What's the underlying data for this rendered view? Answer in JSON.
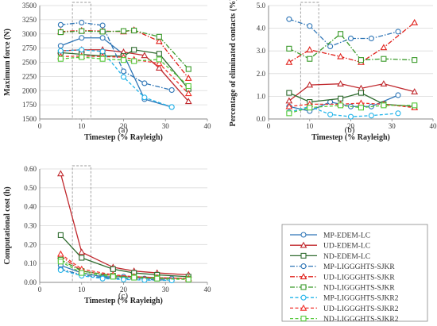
{
  "chart_data": [
    {
      "type": "line",
      "panel_label": "(a)",
      "xlabel": "Timestep (% Rayleigh)",
      "ylabel": "Maximum force (N)",
      "xlim": [
        0,
        40
      ],
      "ylim": [
        1500,
        3500
      ],
      "xticks": [
        0,
        10,
        20,
        30,
        40
      ],
      "yticks": [
        1500,
        1750,
        2000,
        2250,
        2500,
        2750,
        3000,
        3250,
        3500
      ],
      "ytick_decimals": 0,
      "highlight_x": [
        7.8,
        12.2
      ],
      "series": [
        {
          "name": "MP-EDEM-LC",
          "x": [
            5,
            10,
            15,
            20,
            25,
            31.5
          ],
          "y": [
            2790,
            2930,
            2930,
            2640,
            1850,
            1710
          ]
        },
        {
          "name": "UD-EDEM-LC",
          "x": [
            5,
            10,
            15,
            20,
            25,
            28.5,
            35.5
          ],
          "y": [
            2700,
            2720,
            2720,
            2680,
            2620,
            2400,
            1810
          ]
        },
        {
          "name": "ND-EDEM-LC",
          "x": [
            5,
            10,
            15,
            20,
            22.5,
            28.5,
            35.5
          ],
          "y": [
            2670,
            2640,
            2610,
            2610,
            2720,
            2650,
            2030
          ]
        },
        {
          "name": "MP-LIGGGHTS-SJKR",
          "x": [
            5,
            10,
            15,
            20,
            25,
            31.5
          ],
          "y": [
            3160,
            3200,
            3150,
            2340,
            2130,
            2010
          ]
        },
        {
          "name": "UD-LIGGGHTS-SJKR",
          "x": [
            5,
            10,
            15,
            20,
            22.5,
            28.5,
            35.5
          ],
          "y": [
            3040,
            3060,
            3050,
            3040,
            3070,
            2870,
            2220
          ]
        },
        {
          "name": "ND-LIGGGHTS-SJKR",
          "x": [
            5,
            10,
            15,
            20,
            22.5,
            28.5,
            35.5
          ],
          "y": [
            3030,
            3050,
            3040,
            3050,
            3060,
            2950,
            2380
          ]
        },
        {
          "name": "MP-LIGGGHTS-SJKR2",
          "x": [
            5,
            10,
            15,
            20,
            25,
            31.5
          ],
          "y": [
            2700,
            2720,
            2690,
            2240,
            1880,
            1710
          ]
        },
        {
          "name": "UD-LIGGGHTS-SJKR2",
          "x": [
            5,
            10,
            15,
            20,
            22.5,
            28.5,
            35.5
          ],
          "y": [
            2600,
            2610,
            2600,
            2590,
            2550,
            2480,
            1950
          ]
        },
        {
          "name": "ND-LIGGGHTS-SJKR2",
          "x": [
            5,
            10,
            15,
            20,
            22.5,
            28.5,
            35.5
          ],
          "y": [
            2560,
            2590,
            2560,
            2540,
            2520,
            2550,
            2080
          ]
        }
      ]
    },
    {
      "type": "line",
      "panel_label": "(b)",
      "xlabel": "Timestep (% Rayleigh)",
      "ylabel": "Percentage of eliminated contacts (%)",
      "xlim": [
        0,
        40
      ],
      "ylim": [
        0,
        5
      ],
      "xticks": [
        0,
        10,
        20,
        30,
        40
      ],
      "yticks": [
        0,
        1,
        2,
        3,
        4,
        5
      ],
      "ytick_decimals": 1,
      "highlight_x": [
        7.8,
        12.2
      ],
      "series": [
        {
          "name": "MP-EDEM-LC",
          "x": [
            5,
            10,
            15,
            20,
            25,
            31.5
          ],
          "y": [
            0.55,
            0.35,
            0.75,
            0.55,
            0.55,
            1.05
          ]
        },
        {
          "name": "UD-EDEM-LC",
          "x": [
            5,
            10,
            17.5,
            22.5,
            28,
            35.5
          ],
          "y": [
            0.8,
            1.5,
            1.55,
            1.35,
            1.55,
            1.2
          ]
        },
        {
          "name": "ND-EDEM-LC",
          "x": [
            5,
            10,
            17.5,
            22.5,
            28,
            35.5
          ],
          "y": [
            1.15,
            0.75,
            0.9,
            1.15,
            0.65,
            0.55
          ]
        },
        {
          "name": "MP-LIGGGHTS-SJKR",
          "x": [
            5,
            10,
            15,
            20,
            25,
            31.5
          ],
          "y": [
            4.4,
            4.1,
            3.2,
            3.55,
            3.55,
            3.85
          ]
        },
        {
          "name": "UD-LIGGGHTS-SJKR",
          "x": [
            5,
            10,
            17.5,
            22.5,
            28,
            35.5
          ],
          "y": [
            2.5,
            3.05,
            2.75,
            2.5,
            3.15,
            4.25
          ]
        },
        {
          "name": "ND-LIGGGHTS-SJKR",
          "x": [
            5,
            10,
            17.5,
            22.5,
            28,
            35.5
          ],
          "y": [
            3.1,
            2.65,
            3.75,
            2.6,
            2.65,
            2.6
          ]
        },
        {
          "name": "MP-LIGGGHTS-SJKR2",
          "x": [
            5,
            10,
            15,
            20,
            25,
            31.5
          ],
          "y": [
            0.3,
            0.55,
            0.2,
            0.1,
            0.15,
            0.25
          ]
        },
        {
          "name": "UD-LIGGGHTS-SJKR2",
          "x": [
            5,
            10,
            17.5,
            22.5,
            28,
            35.5
          ],
          "y": [
            0.55,
            0.65,
            0.65,
            0.7,
            0.65,
            0.5
          ]
        },
        {
          "name": "ND-LIGGGHTS-SJKR2",
          "x": [
            5,
            10,
            17.5,
            22.5,
            28,
            35.5
          ],
          "y": [
            0.25,
            0.5,
            0.6,
            0.5,
            0.6,
            0.6
          ]
        }
      ]
    },
    {
      "type": "line",
      "panel_label": "(c)",
      "xlabel": "Timestep (% Rayleigh)",
      "ylabel": "Computational cost (h)",
      "xlim": [
        0,
        40
      ],
      "ylim": [
        0,
        0.6
      ],
      "xticks": [
        0,
        10,
        20,
        30,
        40
      ],
      "yticks": [
        0,
        0.1,
        0.2,
        0.3,
        0.4,
        0.5,
        0.6
      ],
      "ytick_decimals": 2,
      "highlight_x": [
        7.8,
        12.2
      ],
      "series": [
        {
          "name": "MP-EDEM-LC",
          "x": [
            5,
            10,
            15,
            20,
            25,
            31.5
          ],
          "y": [
            0.09,
            0.05,
            0.03,
            0.03,
            0.02,
            0.02
          ]
        },
        {
          "name": "UD-EDEM-LC",
          "x": [
            5,
            10,
            17.5,
            22.5,
            28,
            35.5
          ],
          "y": [
            0.575,
            0.16,
            0.08,
            0.06,
            0.05,
            0.04
          ]
        },
        {
          "name": "ND-EDEM-LC",
          "x": [
            5,
            10,
            17.5,
            22.5,
            28,
            35.5
          ],
          "y": [
            0.25,
            0.13,
            0.07,
            0.05,
            0.04,
            0.03
          ]
        },
        {
          "name": "MP-LIGGGHTS-SJKR",
          "x": [
            5,
            10,
            15,
            20,
            25,
            31.5
          ],
          "y": [
            0.07,
            0.04,
            0.025,
            0.02,
            0.015,
            0.012
          ]
        },
        {
          "name": "UD-LIGGGHTS-SJKR",
          "x": [
            5,
            10,
            17.5,
            22.5,
            28,
            35.5
          ],
          "y": [
            0.14,
            0.06,
            0.035,
            0.03,
            0.025,
            0.02
          ]
        },
        {
          "name": "ND-LIGGGHTS-SJKR",
          "x": [
            5,
            10,
            17.5,
            22.5,
            28,
            35.5
          ],
          "y": [
            0.12,
            0.06,
            0.035,
            0.03,
            0.025,
            0.02
          ]
        },
        {
          "name": "MP-LIGGGHTS-SJKR2",
          "x": [
            5,
            10,
            15,
            20,
            25,
            31.5
          ],
          "y": [
            0.065,
            0.035,
            0.02,
            0.015,
            0.012,
            0.01
          ]
        },
        {
          "name": "UD-LIGGGHTS-SJKR2",
          "x": [
            5,
            10,
            17.5,
            22.5,
            28,
            35.5
          ],
          "y": [
            0.15,
            0.07,
            0.04,
            0.03,
            0.025,
            0.02
          ]
        },
        {
          "name": "ND-LIGGGHTS-SJKR2",
          "x": [
            5,
            10,
            17.5,
            22.5,
            28,
            35.5
          ],
          "y": [
            0.11,
            0.05,
            0.03,
            0.025,
            0.02,
            0.015
          ]
        }
      ]
    }
  ],
  "series_styles": [
    {
      "color": "#2e75b6",
      "marker": "circle",
      "dash": "solid"
    },
    {
      "color": "#c0282d",
      "marker": "triangle",
      "dash": "solid"
    },
    {
      "color": "#2f6b2f",
      "marker": "square",
      "dash": "solid"
    },
    {
      "color": "#2e75b6",
      "marker": "circle",
      "dash": "dashdot"
    },
    {
      "color": "#e0201a",
      "marker": "triangle",
      "dash": "dashdot"
    },
    {
      "color": "#3a9a2a",
      "marker": "square",
      "dash": "dashdot"
    },
    {
      "color": "#21b4ea",
      "marker": "circle",
      "dash": "dashed"
    },
    {
      "color": "#f0302a",
      "marker": "triangle",
      "dash": "dashed"
    },
    {
      "color": "#55c93a",
      "marker": "square",
      "dash": "dashed"
    }
  ],
  "colors": {
    "axis": "#888888",
    "grid": "#d9d9d9",
    "highlight_box": "#999999"
  }
}
